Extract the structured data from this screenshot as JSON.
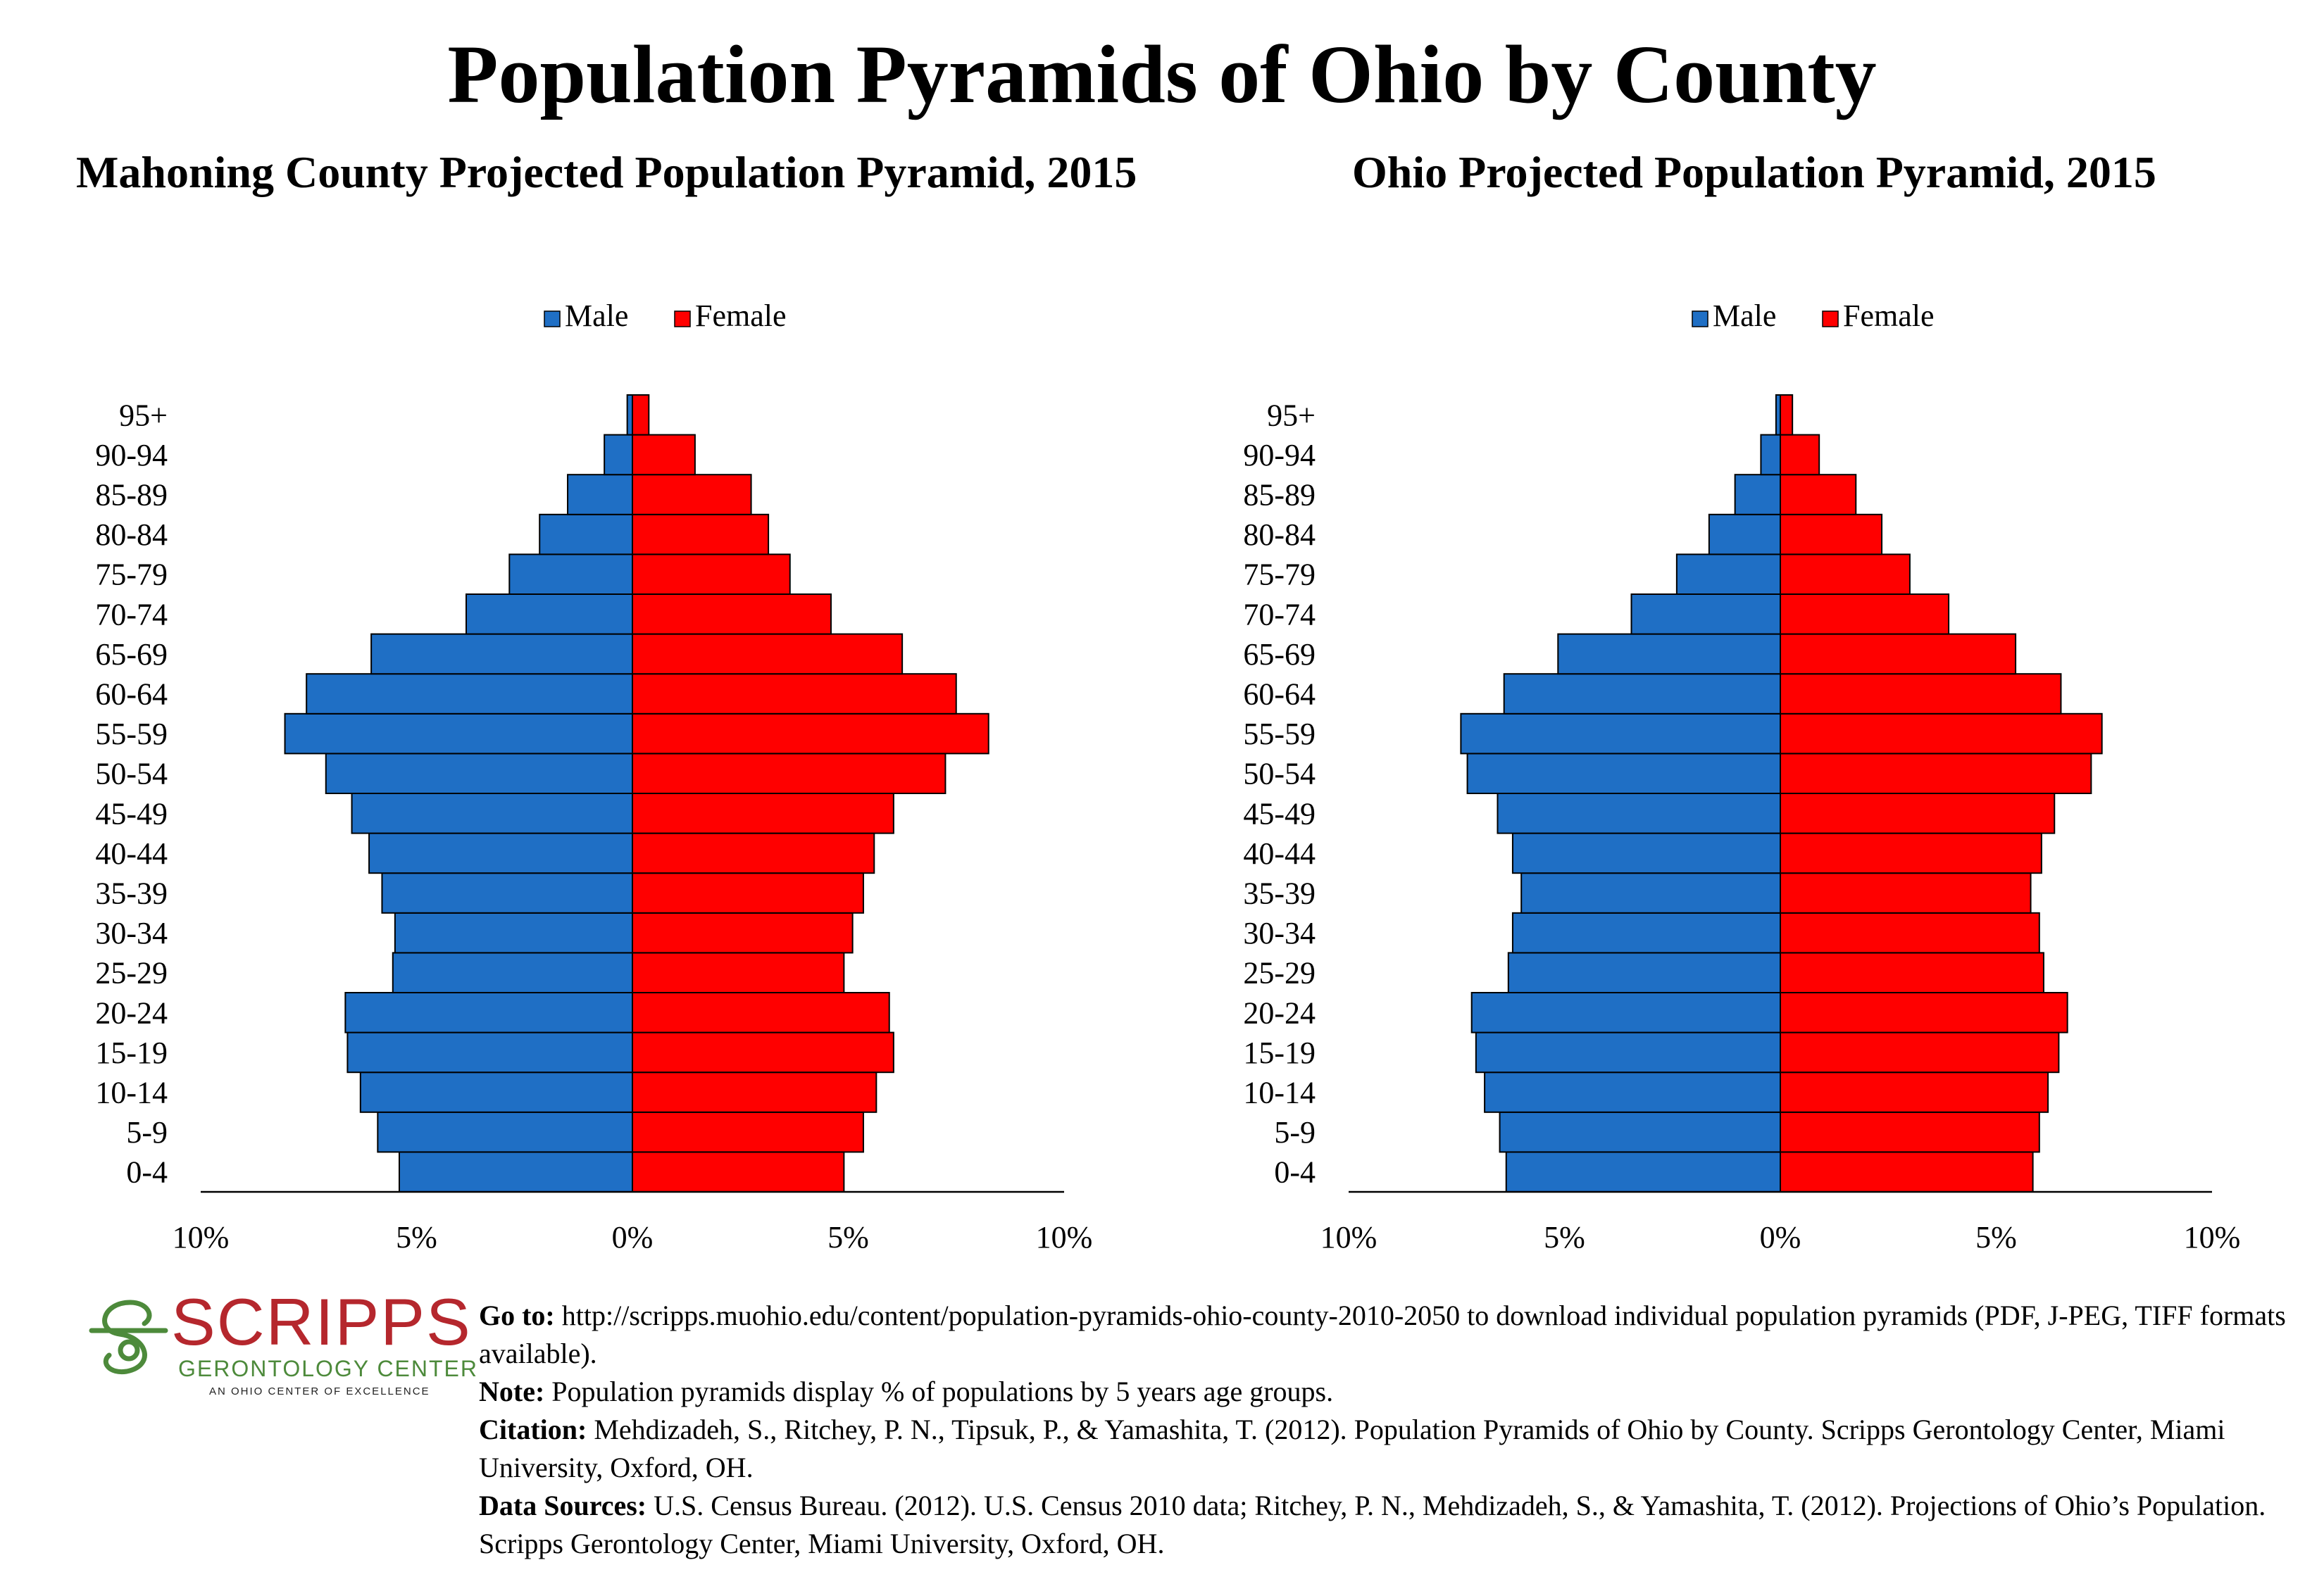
{
  "title": "Population Pyramids of Ohio by County",
  "colors": {
    "male": "#1f6fc5",
    "female": "#ff0000",
    "logo_red": "#b5272d",
    "logo_green": "#4d8a3b"
  },
  "legend": {
    "male": "Male",
    "female": "Female"
  },
  "chart_data": [
    {
      "type": "bar",
      "orientation": "horizontal-pyramid",
      "title": "Mahoning County Projected Population Pyramid, 2015",
      "categories": [
        "0-4",
        "5-9",
        "10-14",
        "15-19",
        "20-24",
        "25-29",
        "30-34",
        "35-39",
        "40-44",
        "45-49",
        "50-54",
        "55-59",
        "60-64",
        "65-69",
        "70-74",
        "75-79",
        "80-84",
        "85-89",
        "90-94",
        "95+"
      ],
      "series": [
        {
          "name": "Male",
          "values": [
            5.4,
            5.9,
            6.3,
            6.6,
            6.65,
            5.55,
            5.5,
            5.8,
            6.1,
            6.5,
            7.1,
            8.05,
            7.55,
            6.05,
            3.85,
            2.85,
            2.15,
            1.5,
            0.65,
            0.12
          ]
        },
        {
          "name": "Female",
          "values": [
            4.9,
            5.35,
            5.65,
            6.05,
            5.95,
            4.9,
            5.1,
            5.35,
            5.6,
            6.05,
            7.25,
            8.25,
            7.5,
            6.25,
            4.6,
            3.65,
            3.15,
            2.75,
            1.45,
            0.38
          ]
        }
      ],
      "ticks": [
        "10%",
        "5%",
        "0%",
        "5%",
        "10%"
      ],
      "xlim": [
        -10,
        10
      ],
      "legend_position": "top"
    },
    {
      "type": "bar",
      "orientation": "horizontal-pyramid",
      "title": "Ohio Projected Population Pyramid, 2015",
      "categories": [
        "0-4",
        "5-9",
        "10-14",
        "15-19",
        "20-24",
        "25-29",
        "30-34",
        "35-39",
        "40-44",
        "45-49",
        "50-54",
        "55-59",
        "60-64",
        "65-69",
        "70-74",
        "75-79",
        "80-84",
        "85-89",
        "90-94",
        "95+"
      ],
      "series": [
        {
          "name": "Male",
          "values": [
            6.35,
            6.5,
            6.85,
            7.05,
            7.15,
            6.3,
            6.2,
            6.0,
            6.2,
            6.55,
            7.25,
            7.4,
            6.4,
            5.15,
            3.45,
            2.4,
            1.65,
            1.05,
            0.45,
            0.1
          ]
        },
        {
          "name": "Female",
          "values": [
            5.85,
            6.0,
            6.2,
            6.45,
            6.65,
            6.1,
            6.0,
            5.8,
            6.05,
            6.35,
            7.2,
            7.45,
            6.5,
            5.45,
            3.9,
            3.0,
            2.35,
            1.75,
            0.9,
            0.28
          ]
        }
      ],
      "ticks": [
        "10%",
        "5%",
        "0%",
        "5%",
        "10%"
      ],
      "xlim": [
        -10,
        10
      ],
      "legend_position": "top"
    }
  ],
  "logo": {
    "word": "SCRIPPS",
    "subtitle": "GERONTOLOGY CENTER",
    "tagline": "AN OHIO CENTER OF EXCELLENCE"
  },
  "notes": {
    "goto_label": "Go to:",
    "goto_text": " http://scripps.muohio.edu/content/population-pyramids-ohio-county-2010-2050 to download individual population pyramids (PDF, J-PEG, TIFF formats available).",
    "note_label": "Note:",
    "note_text": " Population pyramids display % of populations by 5 years age groups.",
    "citation_label": "Citation:",
    "citation_text": " Mehdizadeh, S., Ritchey, P. N., Tipsuk, P., & Yamashita, T. (2012). Population Pyramids of Ohio by County. Scripps Gerontology Center, Miami University, Oxford, OH.",
    "sources_label": "Data Sources:",
    "sources_text": " U.S. Census Bureau. (2012). U.S. Census 2010 data; Ritchey, P. N., Mehdizadeh, S., & Yamashita, T. (2012). Projections of Ohio’s Population. Scripps Gerontology Center, Miami University, Oxford, OH."
  }
}
